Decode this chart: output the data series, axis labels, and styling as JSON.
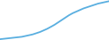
{
  "x": [
    1990,
    1991,
    1992,
    1993,
    1994,
    1995,
    1996,
    1997,
    1998,
    1999,
    2000,
    2001,
    2002,
    2003,
    2004,
    2005,
    2006,
    2007,
    2008,
    2009,
    2010,
    2011,
    2012,
    2013,
    2014,
    2015,
    2016,
    2017,
    2018,
    2019,
    2020
  ],
  "y": [
    2,
    3,
    4,
    5,
    6,
    7,
    8,
    10,
    12,
    14,
    17,
    20,
    24,
    28,
    33,
    38,
    44,
    50,
    56,
    62,
    67,
    71,
    75,
    79,
    82,
    85,
    88,
    91,
    93,
    95,
    97
  ],
  "line_color": "#5aafe0",
  "linewidth": 1.3,
  "background_color": "#ffffff",
  "ylim": [
    0,
    100
  ],
  "xlim": [
    1990,
    2020
  ]
}
